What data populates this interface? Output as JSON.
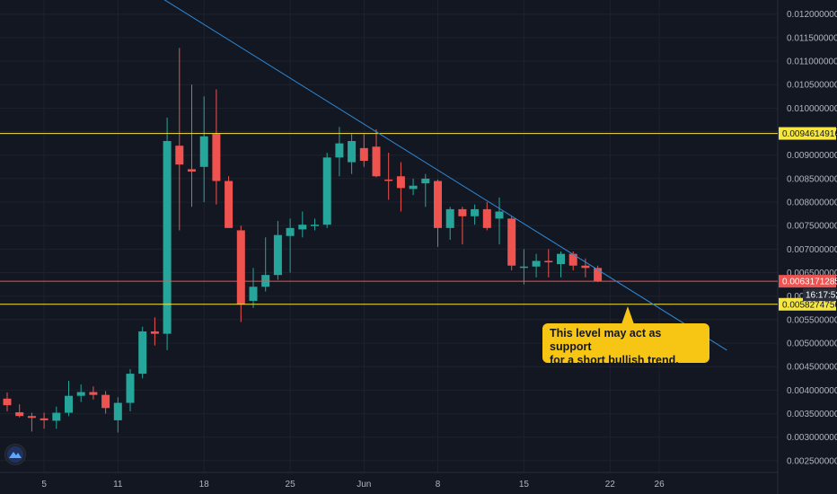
{
  "chart_data": {
    "type": "candlestick",
    "title": "",
    "y_axis": {
      "ylim": [
        0.00225,
        0.0123
      ],
      "ticks": [
        "0.0120000000",
        "0.0115000000",
        "0.0110000000",
        "0.0105000000",
        "0.0100000000",
        "0.0095000000",
        "0.0090000000",
        "0.0085000000",
        "0.0080000000",
        "0.0075000000",
        "0.0070000000",
        "0.0065000000",
        "0.0060000000",
        "0.0055000000",
        "0.0050000000",
        "0.0045000000",
        "0.0040000000",
        "0.0035000000",
        "0.0030000000",
        "0.0025000000"
      ],
      "tick_values": [
        0.012,
        0.0115,
        0.011,
        0.0105,
        0.01,
        0.0095,
        0.009,
        0.0085,
        0.008,
        0.0075,
        0.007,
        0.0065,
        0.006,
        0.0055,
        0.005,
        0.0045,
        0.004,
        0.0035,
        0.003,
        0.0025
      ]
    },
    "x_axis": {
      "labels": [
        "5",
        "11",
        "18",
        "25",
        "Jun",
        "8",
        "15",
        "22",
        "26"
      ],
      "label_days": [
        3,
        9,
        16,
        23,
        29,
        35,
        42,
        49,
        53
      ]
    },
    "candles": [
      {
        "day": 0,
        "o": 0.00382,
        "h": 0.00395,
        "l": 0.00355,
        "c": 0.00368
      },
      {
        "day": 1,
        "o": 0.00353,
        "h": 0.0037,
        "l": 0.00342,
        "c": 0.00345
      },
      {
        "day": 2,
        "o": 0.00345,
        "h": 0.00352,
        "l": 0.00312,
        "c": 0.00341
      },
      {
        "day": 3,
        "o": 0.0034,
        "h": 0.00352,
        "l": 0.00318,
        "c": 0.00336
      },
      {
        "day": 4,
        "o": 0.00335,
        "h": 0.00365,
        "l": 0.00318,
        "c": 0.00352
      },
      {
        "day": 5,
        "o": 0.00352,
        "h": 0.0042,
        "l": 0.00345,
        "c": 0.00388
      },
      {
        "day": 6,
        "o": 0.00388,
        "h": 0.00412,
        "l": 0.00375,
        "c": 0.00396
      },
      {
        "day": 7,
        "o": 0.00396,
        "h": 0.00408,
        "l": 0.0038,
        "c": 0.0039
      },
      {
        "day": 8,
        "o": 0.0039,
        "h": 0.00398,
        "l": 0.0035,
        "c": 0.00362
      },
      {
        "day": 9,
        "o": 0.00336,
        "h": 0.00385,
        "l": 0.0031,
        "c": 0.00373
      },
      {
        "day": 10,
        "o": 0.00373,
        "h": 0.00445,
        "l": 0.00355,
        "c": 0.00435
      },
      {
        "day": 11,
        "o": 0.00435,
        "h": 0.00535,
        "l": 0.00425,
        "c": 0.00525
      },
      {
        "day": 12,
        "o": 0.00525,
        "h": 0.00555,
        "l": 0.00495,
        "c": 0.0052
      },
      {
        "day": 13,
        "o": 0.0052,
        "h": 0.0098,
        "l": 0.00485,
        "c": 0.0093
      },
      {
        "day": 14,
        "o": 0.0092,
        "h": 0.01128,
        "l": 0.0074,
        "c": 0.0088
      },
      {
        "day": 15,
        "o": 0.0087,
        "h": 0.0105,
        "l": 0.0079,
        "c": 0.00865
      },
      {
        "day": 16,
        "o": 0.00875,
        "h": 0.01025,
        "l": 0.008,
        "c": 0.0094
      },
      {
        "day": 17,
        "o": 0.00945,
        "h": 0.0104,
        "l": 0.00795,
        "c": 0.00845
      },
      {
        "day": 18,
        "o": 0.00845,
        "h": 0.00855,
        "l": 0.00745,
        "c": 0.00745
      },
      {
        "day": 19,
        "o": 0.0074,
        "h": 0.0075,
        "l": 0.00545,
        "c": 0.00583
      },
      {
        "day": 20,
        "o": 0.0059,
        "h": 0.0066,
        "l": 0.00575,
        "c": 0.0062
      },
      {
        "day": 21,
        "o": 0.0062,
        "h": 0.00725,
        "l": 0.0061,
        "c": 0.00645
      },
      {
        "day": 22,
        "o": 0.00645,
        "h": 0.0076,
        "l": 0.00635,
        "c": 0.0073
      },
      {
        "day": 23,
        "o": 0.00728,
        "h": 0.00765,
        "l": 0.0065,
        "c": 0.00745
      },
      {
        "day": 24,
        "o": 0.00742,
        "h": 0.0078,
        "l": 0.00725,
        "c": 0.00752
      },
      {
        "day": 25,
        "o": 0.0075,
        "h": 0.00765,
        "l": 0.0074,
        "c": 0.00752
      },
      {
        "day": 26,
        "o": 0.00752,
        "h": 0.00905,
        "l": 0.00745,
        "c": 0.00895
      },
      {
        "day": 27,
        "o": 0.00895,
        "h": 0.0096,
        "l": 0.00855,
        "c": 0.00925
      },
      {
        "day": 28,
        "o": 0.00885,
        "h": 0.00945,
        "l": 0.0086,
        "c": 0.0093
      },
      {
        "day": 29,
        "o": 0.00915,
        "h": 0.00945,
        "l": 0.00875,
        "c": 0.00888
      },
      {
        "day": 30,
        "o": 0.00918,
        "h": 0.00955,
        "l": 0.00853,
        "c": 0.00855
      },
      {
        "day": 31,
        "o": 0.00848,
        "h": 0.00905,
        "l": 0.00805,
        "c": 0.00847
      },
      {
        "day": 32,
        "o": 0.00855,
        "h": 0.00885,
        "l": 0.0078,
        "c": 0.0083
      },
      {
        "day": 33,
        "o": 0.00828,
        "h": 0.0085,
        "l": 0.00815,
        "c": 0.00835
      },
      {
        "day": 34,
        "o": 0.0084,
        "h": 0.0086,
        "l": 0.0079,
        "c": 0.0085
      },
      {
        "day": 35,
        "o": 0.00845,
        "h": 0.00848,
        "l": 0.00705,
        "c": 0.00745
      },
      {
        "day": 36,
        "o": 0.00745,
        "h": 0.0079,
        "l": 0.0072,
        "c": 0.00785
      },
      {
        "day": 37,
        "o": 0.00785,
        "h": 0.0079,
        "l": 0.0071,
        "c": 0.0077
      },
      {
        "day": 38,
        "o": 0.0077,
        "h": 0.00795,
        "l": 0.00752,
        "c": 0.00785
      },
      {
        "day": 39,
        "o": 0.00785,
        "h": 0.008,
        "l": 0.0074,
        "c": 0.00745
      },
      {
        "day": 40,
        "o": 0.00765,
        "h": 0.0081,
        "l": 0.0071,
        "c": 0.0078
      },
      {
        "day": 41,
        "o": 0.00765,
        "h": 0.0077,
        "l": 0.00655,
        "c": 0.00665
      },
      {
        "day": 42,
        "o": 0.00662,
        "h": 0.007,
        "l": 0.00625,
        "c": 0.00663
      },
      {
        "day": 43,
        "o": 0.00663,
        "h": 0.0069,
        "l": 0.0064,
        "c": 0.00675
      },
      {
        "day": 44,
        "o": 0.00675,
        "h": 0.007,
        "l": 0.0064,
        "c": 0.00672
      },
      {
        "day": 45,
        "o": 0.00668,
        "h": 0.00695,
        "l": 0.0064,
        "c": 0.0069
      },
      {
        "day": 46,
        "o": 0.0069,
        "h": 0.00695,
        "l": 0.00655,
        "c": 0.00665
      },
      {
        "day": 47,
        "o": 0.00665,
        "h": 0.0068,
        "l": 0.0064,
        "c": 0.0066
      },
      {
        "day": 48,
        "o": 0.0066,
        "h": 0.00665,
        "l": 0.0063,
        "c": 0.00632
      }
    ],
    "horizontal_lines": [
      {
        "value": 0.0094614916,
        "label": "0.0094614916",
        "color": "#f5e642"
      },
      {
        "value": 0.0058274756,
        "label": "0.0058274756",
        "color": "#f5e642"
      },
      {
        "value": 0.0063171285,
        "label": "0.0063171285",
        "color": "#ef5350"
      }
    ],
    "trendline": {
      "from": {
        "day": 12.5,
        "value": 0.01235
      },
      "to": {
        "day": 58.5,
        "value": 0.00485
      },
      "color": "#2e8ad8"
    },
    "countdown_label": "16:17:52",
    "callout": {
      "lines": [
        "This level may act as support",
        "for a short bullish trend."
      ]
    },
    "colors": {
      "up": "#26a69a",
      "down": "#ef5350",
      "background": "#131722",
      "grid": "#1e222d",
      "axis_text": "#b2b5be",
      "level_line": "#f5e642",
      "trend_line": "#2e8ad8"
    }
  }
}
